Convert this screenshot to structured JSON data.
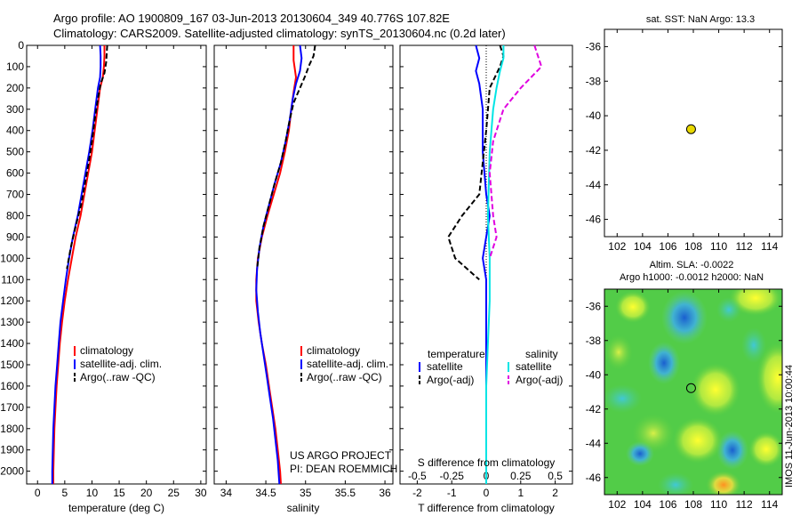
{
  "header": {
    "line1": "Argo profile: AO 1900809_167 03-Jun-2013 20130604_349 40.776S 107.82E",
    "line2": "Climatology: CARS2009. Satellite-adjusted climatology: synTS_20130604.nc (0.2d later)"
  },
  "credit": "IMOS 11-Jun-2013 10:00:44",
  "chart_data": [
    {
      "id": "temperature",
      "type": "line",
      "xlabel": "temperature (deg C)",
      "ylabel": "",
      "xlim": [
        -2,
        31
      ],
      "ylim": [
        2060,
        0
      ],
      "xticks": [
        0,
        5,
        10,
        15,
        20,
        25,
        30
      ],
      "yticks": [
        0,
        100,
        200,
        300,
        400,
        500,
        600,
        700,
        800,
        900,
        1000,
        1100,
        1200,
        1300,
        1400,
        1500,
        1600,
        1700,
        1800,
        1900,
        2000
      ],
      "legend": {
        "position": "lower-right",
        "entries": [
          "climatology",
          "satellite-adj. clim.",
          "Argo(..raw -QC)"
        ]
      },
      "series": [
        {
          "name": "climatology",
          "color": "#ff0000",
          "dash": "solid",
          "points": [
            [
              12.3,
              0
            ],
            [
              12.3,
              50
            ],
            [
              12.2,
              100
            ],
            [
              12.0,
              150
            ],
            [
              11.5,
              200
            ],
            [
              11.0,
              300
            ],
            [
              10.5,
              400
            ],
            [
              10.0,
              500
            ],
            [
              9.3,
              600
            ],
            [
              8.6,
              700
            ],
            [
              7.9,
              800
            ],
            [
              7.0,
              900
            ],
            [
              6.3,
              1000
            ],
            [
              5.6,
              1100
            ],
            [
              5.0,
              1200
            ],
            [
              4.5,
              1300
            ],
            [
              4.1,
              1400
            ],
            [
              3.8,
              1500
            ],
            [
              3.5,
              1600
            ],
            [
              3.3,
              1700
            ],
            [
              3.1,
              1800
            ],
            [
              3.0,
              1900
            ],
            [
              2.9,
              2000
            ],
            [
              2.9,
              2060
            ]
          ]
        },
        {
          "name": "satellite-adj. clim.",
          "color": "#0000ff",
          "dash": "solid",
          "points": [
            [
              11.5,
              0
            ],
            [
              11.6,
              50
            ],
            [
              11.6,
              100
            ],
            [
              11.5,
              150
            ],
            [
              11.1,
              200
            ],
            [
              10.6,
              300
            ],
            [
              10.1,
              400
            ],
            [
              9.5,
              500
            ],
            [
              8.8,
              600
            ],
            [
              8.1,
              700
            ],
            [
              7.4,
              800
            ],
            [
              6.5,
              900
            ],
            [
              5.8,
              1000
            ],
            [
              5.2,
              1100
            ],
            [
              4.7,
              1200
            ],
            [
              4.2,
              1300
            ],
            [
              3.9,
              1400
            ],
            [
              3.6,
              1500
            ],
            [
              3.3,
              1600
            ],
            [
              3.1,
              1700
            ],
            [
              2.9,
              1800
            ],
            [
              2.8,
              1900
            ],
            [
              2.7,
              2000
            ],
            [
              2.7,
              2060
            ]
          ]
        },
        {
          "name": "Argo(..raw -QC)",
          "color": "#000000",
          "dash": "dash",
          "points": [
            [
              12.8,
              0
            ],
            [
              12.7,
              40
            ],
            [
              12.6,
              80
            ],
            [
              12.3,
              130
            ],
            [
              11.6,
              180
            ],
            [
              11.1,
              250
            ],
            [
              10.5,
              350
            ],
            [
              10.0,
              450
            ],
            [
              9.4,
              550
            ],
            [
              8.7,
              650
            ],
            [
              8.0,
              750
            ],
            [
              7.0,
              850
            ],
            [
              6.1,
              950
            ],
            [
              5.4,
              1050
            ]
          ]
        }
      ]
    },
    {
      "id": "salinity",
      "type": "line",
      "xlabel": "salinity",
      "ylabel": "",
      "xlim": [
        33.85,
        36.1
      ],
      "ylim": [
        2060,
        0
      ],
      "xticks": [
        34,
        34.5,
        35,
        35.5,
        36
      ],
      "legend": {
        "position": "lower-right",
        "entries": [
          "climatology",
          "satellite-adj. clim.",
          "Argo(..raw -QC)"
        ]
      },
      "annotation": [
        "US ARGO PROJECT",
        "PI: DEAN ROEMMICH"
      ],
      "series": [
        {
          "name": "climatology",
          "color": "#ff0000",
          "dash": "solid",
          "points": [
            [
              34.85,
              0
            ],
            [
              34.85,
              70
            ],
            [
              34.88,
              150
            ],
            [
              34.85,
              220
            ],
            [
              34.82,
              300
            ],
            [
              34.79,
              400
            ],
            [
              34.74,
              500
            ],
            [
              34.68,
              600
            ],
            [
              34.6,
              700
            ],
            [
              34.52,
              800
            ],
            [
              34.45,
              900
            ],
            [
              34.4,
              1000
            ],
            [
              34.38,
              1100
            ],
            [
              34.38,
              1200
            ],
            [
              34.41,
              1300
            ],
            [
              34.45,
              1400
            ],
            [
              34.5,
              1500
            ],
            [
              34.54,
              1600
            ],
            [
              34.58,
              1700
            ],
            [
              34.62,
              1800
            ],
            [
              34.65,
              1900
            ],
            [
              34.68,
              2000
            ],
            [
              34.69,
              2060
            ]
          ]
        },
        {
          "name": "satellite-adj. clim.",
          "color": "#0000ff",
          "dash": "solid",
          "points": [
            [
              34.93,
              0
            ],
            [
              34.95,
              60
            ],
            [
              34.93,
              120
            ],
            [
              34.88,
              180
            ],
            [
              34.84,
              250
            ],
            [
              34.8,
              350
            ],
            [
              34.75,
              450
            ],
            [
              34.69,
              550
            ],
            [
              34.61,
              650
            ],
            [
              34.54,
              750
            ],
            [
              34.47,
              850
            ],
            [
              34.42,
              950
            ],
            [
              34.39,
              1050
            ],
            [
              34.38,
              1150
            ],
            [
              34.4,
              1250
            ],
            [
              34.43,
              1350
            ],
            [
              34.47,
              1450
            ],
            [
              34.51,
              1550
            ],
            [
              34.55,
              1650
            ],
            [
              34.59,
              1750
            ],
            [
              34.62,
              1850
            ],
            [
              34.65,
              1950
            ],
            [
              34.67,
              2060
            ]
          ]
        },
        {
          "name": "Argo(..raw -QC)",
          "color": "#000000",
          "dash": "dash",
          "points": [
            [
              35.12,
              0
            ],
            [
              35.1,
              50
            ],
            [
              35.05,
              90
            ],
            [
              35.0,
              140
            ],
            [
              34.93,
              200
            ],
            [
              34.85,
              270
            ],
            [
              34.8,
              350
            ],
            [
              34.75,
              450
            ],
            [
              34.69,
              550
            ],
            [
              34.61,
              650
            ],
            [
              34.54,
              750
            ],
            [
              34.47,
              850
            ],
            [
              34.42,
              950
            ],
            [
              34.39,
              1050
            ]
          ]
        }
      ]
    },
    {
      "id": "difference",
      "type": "line",
      "xlabel": "T difference from climatology",
      "x2label": "S difference from climatology",
      "ylabel": "",
      "xlim": [
        -2.5,
        2.5
      ],
      "ylim": [
        2060,
        0
      ],
      "xticks": [
        -2,
        -1,
        0,
        1,
        2
      ],
      "x2ticks": [
        "-0.5",
        "-0.25",
        "0",
        "0.25",
        "0.5"
      ],
      "legend": {
        "position": "lower",
        "groups": [
          {
            "title": "temperature",
            "entries": [
              "satellite",
              "Argo(-adj)"
            ]
          },
          {
            "title": "salinity",
            "entries": [
              "satellite",
              "Argo(-adj)"
            ]
          }
        ]
      },
      "series": [
        {
          "name": "satellite",
          "group": "temperature",
          "color": "#0000ff",
          "dash": "solid",
          "points": [
            [
              -0.3,
              0
            ],
            [
              -0.2,
              60
            ],
            [
              -0.3,
              120
            ],
            [
              -0.2,
              180
            ],
            [
              -0.1,
              300
            ],
            [
              -0.1,
              500
            ],
            [
              0.0,
              700
            ],
            [
              0.1,
              800
            ],
            [
              0.0,
              900
            ],
            [
              -0.1,
              1000
            ],
            [
              0.0,
              1100
            ],
            [
              0.0,
              1300
            ],
            [
              0.0,
              1600
            ],
            [
              0.0,
              2060
            ]
          ]
        },
        {
          "name": "Argo(-adj)",
          "group": "temperature",
          "color": "#000000",
          "dash": "dash",
          "points": [
            [
              0.4,
              0
            ],
            [
              0.5,
              50
            ],
            [
              0.4,
              100
            ],
            [
              0.1,
              200
            ],
            [
              0.0,
              400
            ],
            [
              -0.2,
              700
            ],
            [
              -0.7,
              800
            ],
            [
              -1.1,
              900
            ],
            [
              -0.9,
              1000
            ],
            [
              -0.2,
              1100
            ]
          ]
        },
        {
          "name": "satellite",
          "group": "salinity",
          "color": "#00e5e5",
          "dash": "solid",
          "points": [
            [
              0.5,
              0
            ],
            [
              0.5,
              60
            ],
            [
              0.4,
              120
            ],
            [
              0.3,
              200
            ],
            [
              0.2,
              300
            ],
            [
              0.1,
              500
            ],
            [
              0.05,
              800
            ],
            [
              0.1,
              1000
            ],
            [
              0.1,
              1200
            ],
            [
              0.05,
              1400
            ],
            [
              0.0,
              1600
            ],
            [
              0.0,
              2060
            ]
          ]
        },
        {
          "name": "Argo(-adj)",
          "group": "salinity",
          "color": "#e000e0",
          "dash": "dash",
          "points": [
            [
              1.4,
              0
            ],
            [
              1.5,
              50
            ],
            [
              1.6,
              100
            ],
            [
              1.0,
              200
            ],
            [
              0.5,
              300
            ],
            [
              0.2,
              450
            ],
            [
              0.1,
              600
            ],
            [
              0.2,
              800
            ],
            [
              0.3,
              900
            ],
            [
              0.1,
              1000
            ]
          ]
        }
      ]
    },
    {
      "id": "sst-map",
      "type": "scatter",
      "title": "sat. SST: NaN Argo: 13.3",
      "xlim": [
        101,
        115
      ],
      "ylim": [
        -47,
        -35
      ],
      "xticks": [
        102,
        104,
        106,
        108,
        110,
        112,
        114
      ],
      "yticks": [
        -36,
        -38,
        -40,
        -42,
        -44,
        -46
      ],
      "points": [
        {
          "x": 107.82,
          "y": -40.78,
          "color": "#e8d800"
        }
      ]
    },
    {
      "id": "sla-map",
      "type": "heatmap",
      "title": [
        "Altim. SLA: -0.0022",
        "Argo h1000: -0.0012 h2000: NaN"
      ],
      "xlim": [
        101,
        115
      ],
      "ylim": [
        -47,
        -35
      ],
      "xticks": [
        102,
        104,
        106,
        108,
        110,
        112,
        114
      ],
      "yticks": [
        -36,
        -38,
        -40,
        -42,
        -44,
        -46
      ],
      "points": [
        {
          "x": 107.82,
          "y": -40.78
        }
      ]
    }
  ]
}
